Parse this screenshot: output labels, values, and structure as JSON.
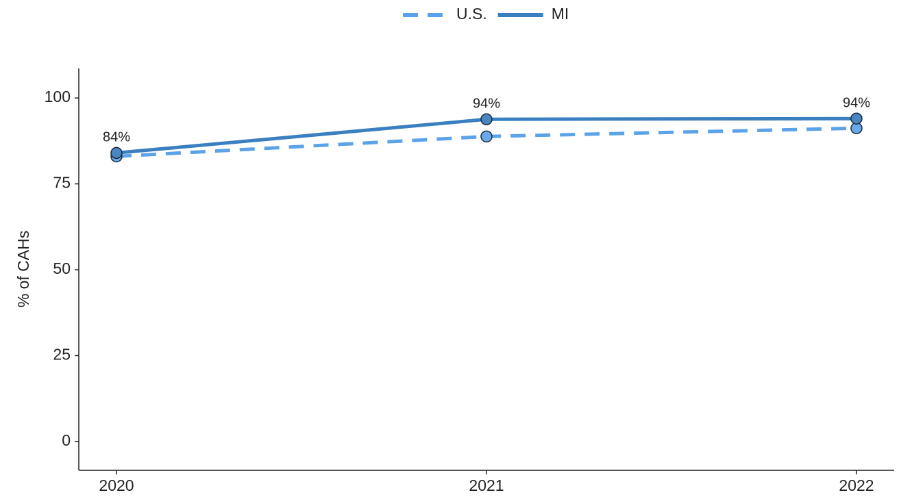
{
  "chart_data": {
    "type": "line",
    "categories": [
      "2020",
      "2021",
      "2022"
    ],
    "series": [
      {
        "name": "U.S.",
        "color": "#5ba3e8",
        "marker_color": "#6aaae8",
        "dashed": true,
        "values": [
          83,
          88.8,
          91.2
        ]
      },
      {
        "name": "MI",
        "color": "#3a7fbf",
        "marker_color": "#4a86c0",
        "dashed": false,
        "values": [
          84,
          93.8,
          94
        ],
        "value_labels": [
          "84%",
          "94%",
          "94%"
        ]
      }
    ],
    "y_label": "% of CAHs",
    "ylim": [
      -8.4,
      108.6
    ],
    "yticks": [
      0,
      25,
      50,
      75,
      100
    ],
    "legend": "top",
    "grid": false
  }
}
